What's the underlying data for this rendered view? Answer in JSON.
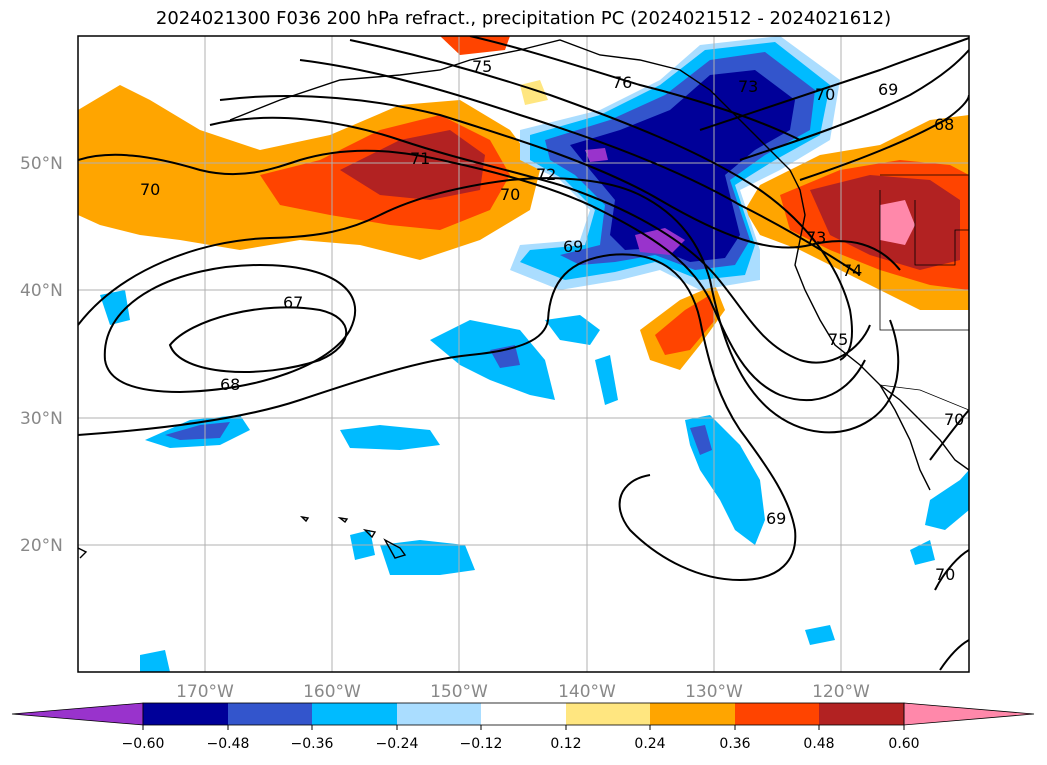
{
  "title": "2024021300 F036 200 hPa refract., precipitation PC (2024021512 - 2024021612)",
  "map": {
    "lon_range": [
      -180,
      -110
    ],
    "lat_range": [
      10,
      60
    ],
    "lat_ticks": [
      "20°N",
      "30°N",
      "40°N",
      "50°N"
    ],
    "lon_ticks": [
      "170°W",
      "160°W",
      "150°W",
      "140°W",
      "130°W",
      "120°W"
    ],
    "grid": true
  },
  "colorbar": {
    "ticks": [
      "−0.60",
      "−0.48",
      "−0.36",
      "−0.24",
      "−0.12",
      "0.12",
      "0.24",
      "0.36",
      "0.48",
      "0.60"
    ],
    "colors": [
      "#9933cc",
      "#000099",
      "#3355cc",
      "#00bbff",
      "#aaddff",
      "#ffffff",
      "#ffe680",
      "#ffa500",
      "#ff4400",
      "#b22222",
      "#ff88aa"
    ]
  },
  "contour_labels": [
    "75",
    "76",
    "73",
    "70",
    "69",
    "68",
    "71",
    "72",
    "70",
    "69",
    "73",
    "74",
    "67",
    "68",
    "75",
    "70",
    "69",
    "70",
    "70"
  ],
  "fill_colors": {
    "purple": "#9933cc",
    "navy": "#000099",
    "blue": "#3355cc",
    "cyan": "#00bbff",
    "lightblue": "#aaddff",
    "yellow": "#ffe680",
    "orange": "#ffa500",
    "redorange": "#ff4400",
    "darkred": "#b22222",
    "pink": "#ff88aa"
  }
}
